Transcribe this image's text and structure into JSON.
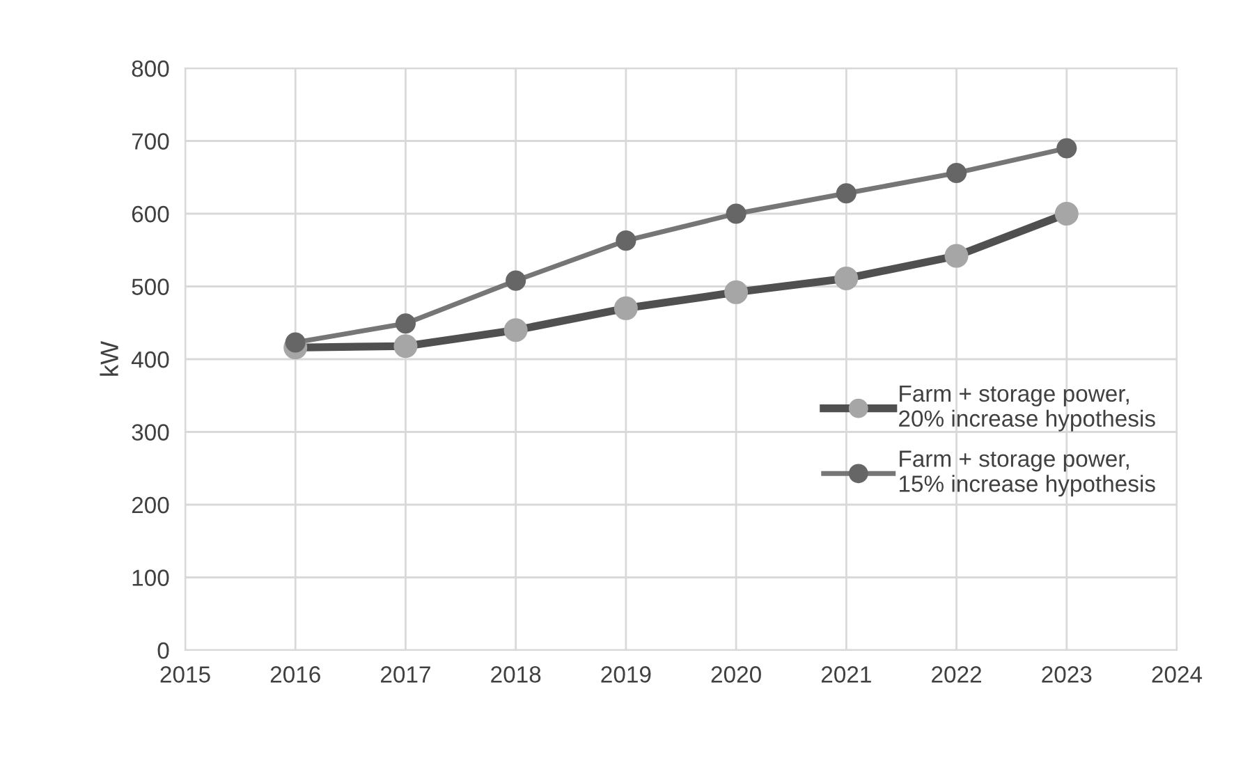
{
  "chart_data": {
    "type": "line",
    "ylabel": "kW",
    "x": [
      2016,
      2017,
      2018,
      2019,
      2020,
      2021,
      2022,
      2023
    ],
    "series": [
      {
        "name": "Farm + storage power,\n20% increase hypothesis",
        "color": "#505050",
        "colors": [
          "#a6a6a6",
          "#a6a6a6",
          "#a6a6a6",
          "#a6a6a6",
          "#a6a6a6",
          "#a6a6a6",
          "#a6a6a6",
          "#a6a6a6"
        ],
        "values": [
          416,
          418,
          440,
          470,
          492,
          511,
          542,
          600
        ]
      },
      {
        "name": "Farm + storage power,\n15% increase hypothesis",
        "color": "#767676",
        "colors": [
          "#666666",
          "#666666",
          "#666666",
          "#666666",
          "#666666",
          "#666666",
          "#666666",
          "#666666"
        ],
        "values": [
          423,
          449,
          508,
          563,
          600,
          628,
          656,
          690
        ]
      }
    ],
    "xlim": [
      2015,
      2024
    ],
    "xticks": [
      2015,
      2016,
      2017,
      2018,
      2019,
      2020,
      2021,
      2022,
      2023,
      2024
    ],
    "ylim": [
      0,
      800
    ],
    "yticks": [
      0,
      100,
      200,
      300,
      400,
      500,
      600,
      700,
      800
    ],
    "grid": true,
    "legend": "right",
    "marker": "circle",
    "line_style": "solid"
  }
}
